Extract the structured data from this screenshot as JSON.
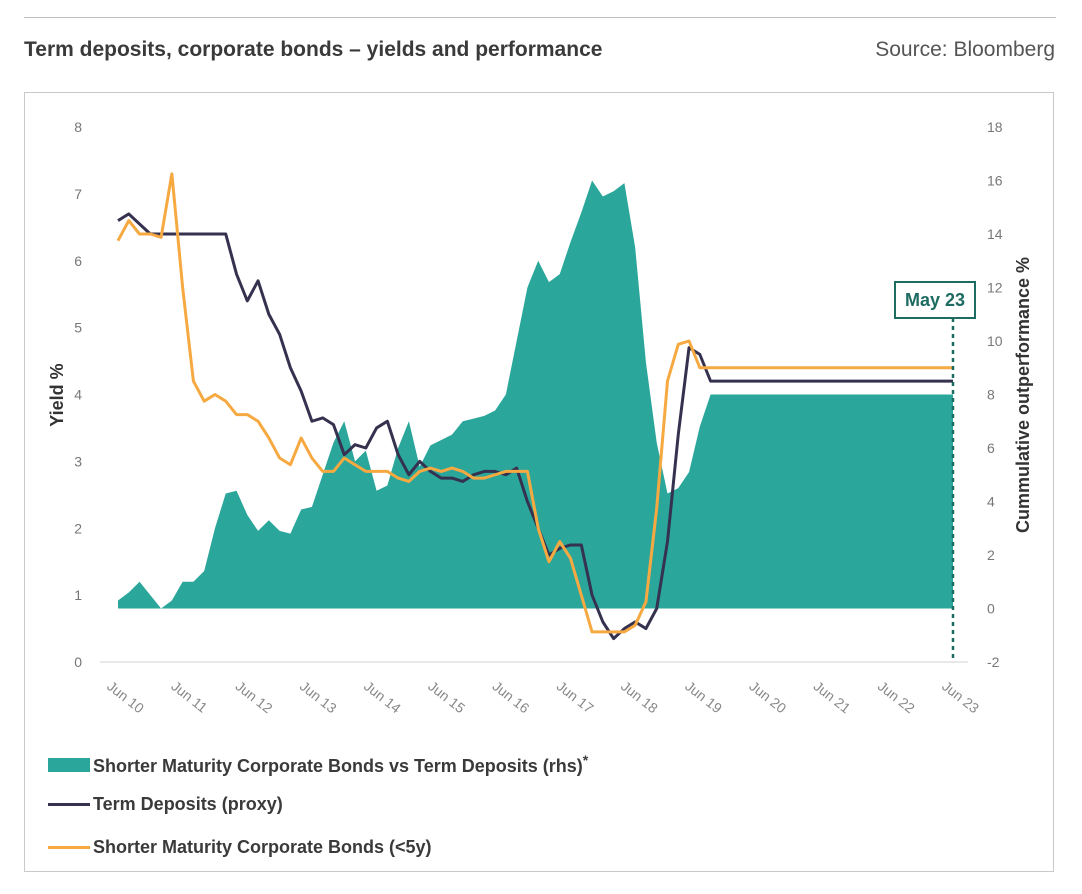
{
  "header": {
    "title": "Term deposits, corporate bonds – yields and performance",
    "source": "Source: Bloomberg"
  },
  "chart_data": {
    "type": "line",
    "title": "Term deposits, corporate bonds – yields and performance",
    "ylabel": "Yield %",
    "y2label": "Cummulative outperformance %",
    "ylim": [
      0,
      8
    ],
    "y2lim": [
      -2,
      18
    ],
    "yticks": [
      "0",
      "1",
      "2",
      "3",
      "4",
      "5",
      "6",
      "7",
      "8"
    ],
    "y2ticks": [
      "-2",
      "0",
      "2",
      "4",
      "6",
      "8",
      "10",
      "12",
      "14",
      "16",
      "18"
    ],
    "xticks": [
      "Jun 10",
      "Jun 11",
      "Jun 12",
      "Jun 13",
      "Jun 14",
      "Jun 15",
      "Jun 16",
      "Jun 17",
      "Jun 18",
      "Jun 19",
      "Jun 20",
      "Jun 21",
      "Jun 22",
      "Jun 23"
    ],
    "annotation": "May 23",
    "annotation_x": 155,
    "colors": {
      "area": "#2aa69b",
      "term": "#35324f",
      "corp": "#f7a941",
      "marker": "#1e6b61"
    },
    "series": [
      {
        "name": "Shorter Maturity Corporate Bonds vs Term Deposits (rhs)",
        "axis": "right",
        "kind": "area",
        "x": [
          0,
          2,
          4,
          6,
          8,
          10,
          12,
          14,
          16,
          18,
          20,
          22,
          24,
          26,
          28,
          30,
          32,
          34,
          36,
          38,
          40,
          42,
          44,
          46,
          48,
          50,
          52,
          54,
          56,
          58,
          60,
          62,
          64,
          66,
          68,
          70,
          72,
          74,
          76,
          78,
          80,
          82,
          84,
          86,
          88,
          90,
          92,
          94,
          96,
          98,
          100,
          102,
          104,
          106,
          108,
          110,
          112,
          114,
          116,
          118,
          120,
          122,
          124,
          126,
          128,
          130,
          132,
          134,
          136,
          138,
          140,
          142,
          144,
          146,
          148,
          150,
          152,
          154,
          155
        ],
        "values": [
          0.3,
          0.6,
          1.0,
          0.5,
          0.0,
          0.3,
          1.0,
          1.0,
          1.4,
          3.0,
          4.3,
          4.4,
          3.5,
          2.9,
          3.3,
          2.9,
          2.8,
          3.7,
          3.8,
          5.0,
          6.2,
          7.0,
          5.5,
          5.9,
          4.4,
          4.6,
          6.0,
          7.0,
          5.3,
          6.1,
          6.3,
          6.5,
          7.0,
          7.1,
          7.2,
          7.4,
          8.0,
          10.0,
          12.0,
          13.0,
          12.2,
          12.5,
          13.7,
          14.8,
          16.0,
          15.4,
          15.6,
          15.9,
          13.5,
          9.2,
          6.2,
          4.3,
          4.5,
          5.1,
          6.8,
          8.0,
          8.0,
          8.0,
          8.0,
          8.0,
          8.0,
          8.0,
          8.0,
          8.0,
          8.0,
          8.0,
          8.0,
          8.0,
          8.0,
          8.0,
          8.0,
          8.0,
          8.0,
          8.0,
          8.0,
          8.0,
          8.0,
          8.0,
          8.0
        ]
      },
      {
        "name": "Term Deposits (proxy)",
        "axis": "left",
        "kind": "line",
        "x": [
          0,
          2,
          4,
          6,
          8,
          10,
          12,
          14,
          16,
          18,
          20,
          22,
          24,
          26,
          28,
          30,
          32,
          34,
          36,
          38,
          40,
          42,
          44,
          46,
          48,
          50,
          52,
          54,
          56,
          58,
          60,
          62,
          64,
          66,
          68,
          70,
          72,
          74,
          76,
          78,
          80,
          82,
          84,
          86,
          88,
          90,
          92,
          94,
          96,
          98,
          100,
          102,
          104,
          106,
          108,
          110,
          112,
          114,
          116,
          118,
          120,
          122,
          124,
          126,
          128,
          130,
          132,
          134,
          136,
          138,
          140,
          142,
          144,
          146,
          148,
          150,
          152,
          154,
          155
        ],
        "values": [
          6.6,
          6.7,
          6.55,
          6.4,
          6.4,
          6.4,
          6.4,
          6.4,
          6.4,
          6.4,
          6.4,
          5.8,
          5.4,
          5.7,
          5.2,
          4.9,
          4.4,
          4.05,
          3.6,
          3.65,
          3.55,
          3.1,
          3.25,
          3.2,
          3.5,
          3.6,
          3.1,
          2.8,
          3.0,
          2.85,
          2.75,
          2.75,
          2.7,
          2.8,
          2.85,
          2.85,
          2.8,
          2.9,
          2.4,
          2.0,
          1.6,
          1.7,
          1.75,
          1.75,
          1.0,
          0.6,
          0.35,
          0.5,
          0.6,
          0.5,
          0.8,
          1.8,
          3.4,
          4.7,
          4.6,
          4.2,
          4.2,
          4.2,
          4.2,
          4.2,
          4.2,
          4.2,
          4.2,
          4.2,
          4.2,
          4.2,
          4.2,
          4.2,
          4.2,
          4.2,
          4.2,
          4.2,
          4.2,
          4.2,
          4.2,
          4.2,
          4.2,
          4.2,
          4.2
        ]
      },
      {
        "name": "Shorter Maturity Corporate Bonds (<5y)",
        "axis": "left",
        "kind": "line",
        "x": [
          0,
          2,
          4,
          6,
          8,
          10,
          12,
          14,
          16,
          18,
          20,
          22,
          24,
          26,
          28,
          30,
          32,
          34,
          36,
          38,
          40,
          42,
          44,
          46,
          48,
          50,
          52,
          54,
          56,
          58,
          60,
          62,
          64,
          66,
          68,
          70,
          72,
          74,
          76,
          78,
          80,
          82,
          84,
          86,
          88,
          90,
          92,
          94,
          96,
          98,
          100,
          102,
          104,
          106,
          108,
          110,
          112,
          114,
          116,
          118,
          120,
          122,
          124,
          126,
          128,
          130,
          132,
          134,
          136,
          138,
          140,
          142,
          144,
          146,
          148,
          150,
          152,
          154,
          155
        ],
        "values": [
          6.3,
          6.6,
          6.4,
          6.4,
          6.35,
          7.3,
          5.6,
          4.2,
          3.9,
          4.0,
          3.9,
          3.7,
          3.7,
          3.6,
          3.35,
          3.05,
          2.95,
          3.35,
          3.05,
          2.85,
          2.85,
          3.05,
          2.95,
          2.85,
          2.85,
          2.85,
          2.75,
          2.7,
          2.85,
          2.9,
          2.85,
          2.9,
          2.85,
          2.75,
          2.75,
          2.8,
          2.85,
          2.85,
          2.85,
          2.0,
          1.5,
          1.8,
          1.55,
          1.0,
          0.45,
          0.45,
          0.45,
          0.45,
          0.55,
          0.9,
          2.3,
          4.2,
          4.75,
          4.8,
          4.4,
          4.4,
          4.4,
          4.4,
          4.4,
          4.4,
          4.4,
          4.4,
          4.4,
          4.4,
          4.4,
          4.4,
          4.4,
          4.4,
          4.4,
          4.4,
          4.4,
          4.4,
          4.4,
          4.4,
          4.4,
          4.4,
          4.4,
          4.4,
          4.4
        ]
      }
    ]
  },
  "legend": {
    "items": [
      {
        "label": "Shorter Maturity Corporate Bonds vs Term Deposits (rhs)",
        "star": "*"
      },
      {
        "label": "Term Deposits (proxy)"
      },
      {
        "label": "Shorter Maturity Corporate Bonds (<5y)"
      }
    ]
  }
}
